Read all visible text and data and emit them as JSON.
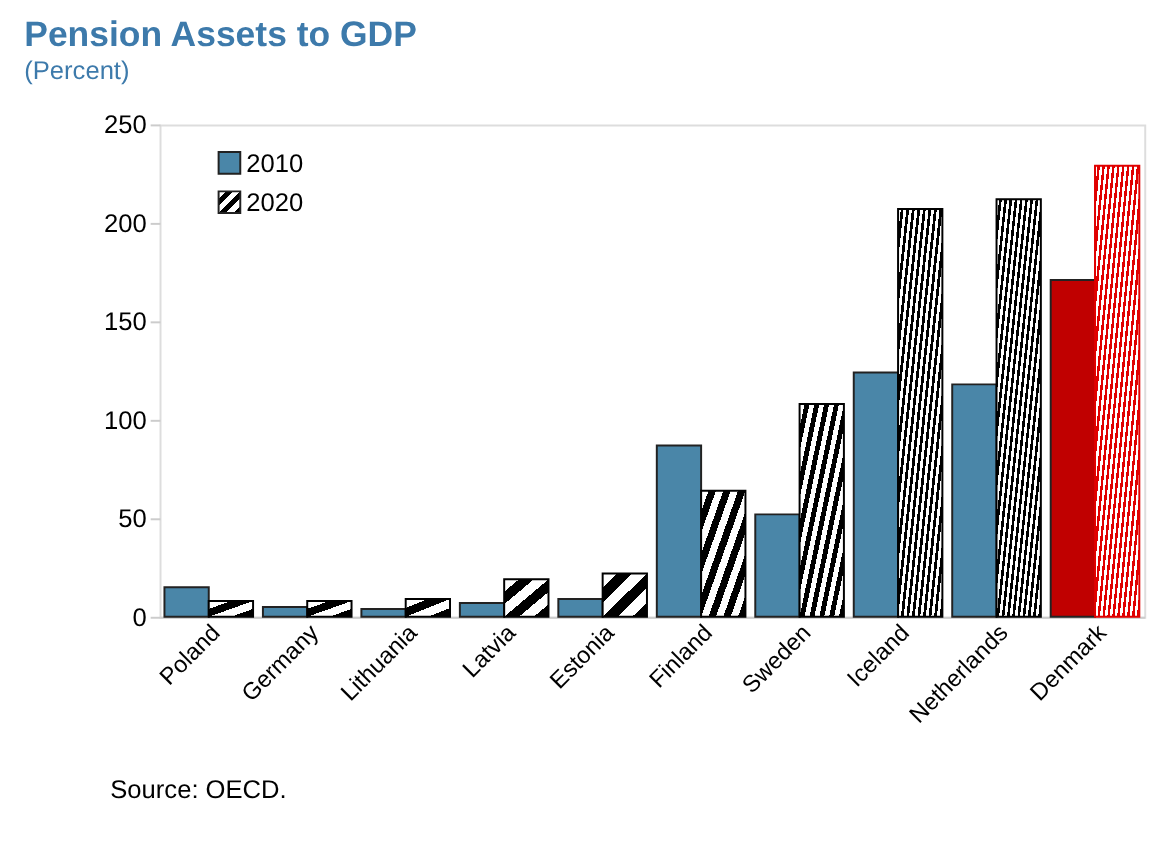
{
  "chart_data": {
    "type": "bar",
    "title": "Pension Assets to GDP",
    "subtitle": "(Percent)",
    "categories": [
      "Poland",
      "Germany",
      "Lithuania",
      "Latvia",
      "Estonia",
      "Finland",
      "Sweden",
      "Iceland",
      "Netherlands",
      "Denmark"
    ],
    "series": [
      {
        "name": "2010",
        "color": "#4a86a8",
        "colors": [
          "#4a86a8",
          "#4a86a8",
          "#4a86a8",
          "#4a86a8",
          "#4a86a8",
          "#4a86a8",
          "#4a86a8",
          "#4a86a8",
          "#4a86a8",
          "#c00000"
        ],
        "values": [
          15,
          5,
          4,
          7,
          9,
          87,
          52,
          124,
          118,
          171
        ]
      },
      {
        "name": "2020",
        "color": "#000000",
        "colors": [
          "#000000",
          "#000000",
          "#000000",
          "#000000",
          "#000000",
          "#000000",
          "#000000",
          "#000000",
          "#000000",
          "#e00000"
        ],
        "values": [
          8,
          8,
          9,
          19,
          22,
          64,
          108,
          207,
          212,
          229
        ]
      }
    ],
    "ylim": [
      0,
      250
    ],
    "yticks": [
      0,
      50,
      100,
      150,
      200,
      250
    ],
    "grid": false,
    "legend": "top left",
    "annotations": [
      "Source: OECD."
    ]
  }
}
